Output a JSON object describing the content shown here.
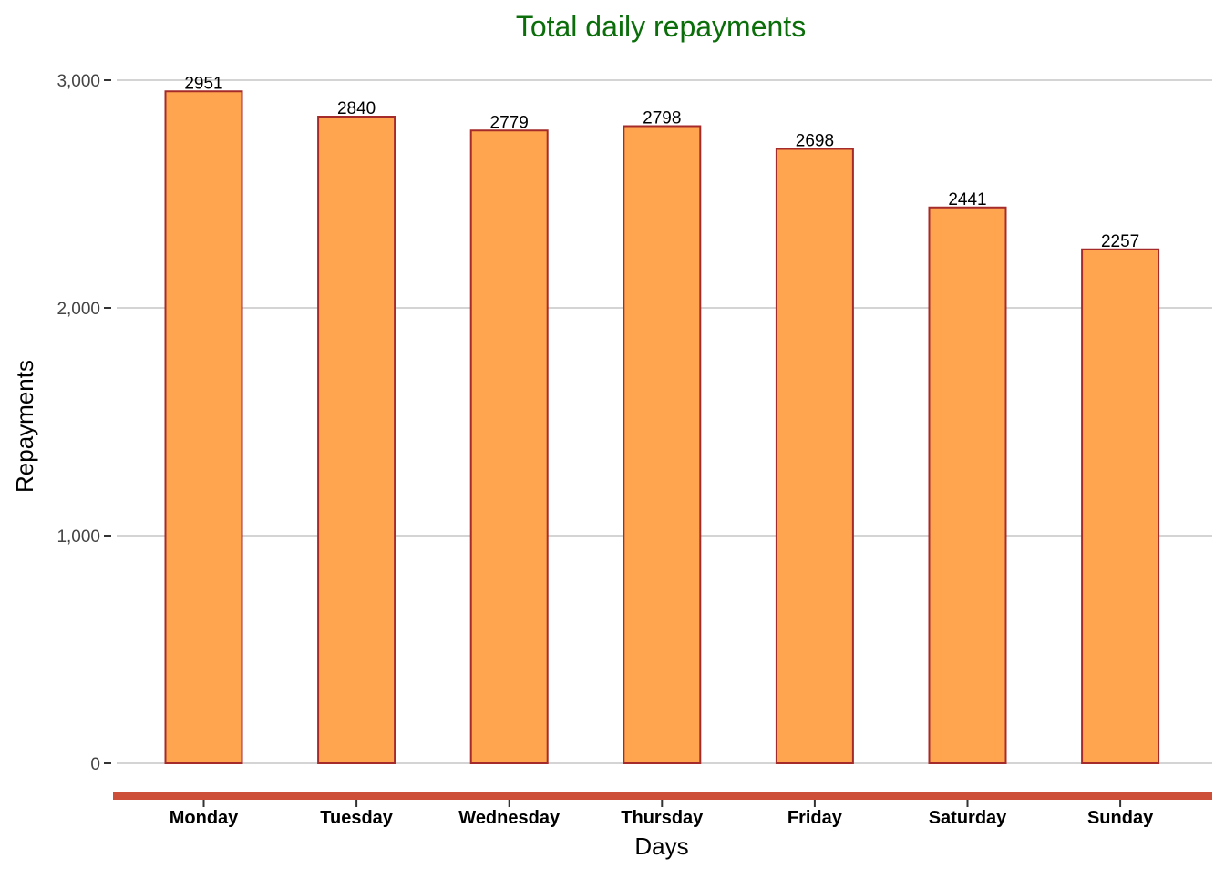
{
  "chart_data": {
    "type": "bar",
    "title": "Total daily repayments",
    "xlabel": "Days",
    "ylabel": "Repayments",
    "categories": [
      "Monday",
      "Tuesday",
      "Wednesday",
      "Thursday",
      "Friday",
      "Saturday",
      "Sunday"
    ],
    "values": [
      2951,
      2840,
      2779,
      2798,
      2698,
      2441,
      2257
    ],
    "value_labels": [
      "2951",
      "2840",
      "2779",
      "2798",
      "2698",
      "2441",
      "2257"
    ],
    "yticks": [
      0,
      1000,
      2000,
      3000
    ],
    "ytick_labels": [
      "0",
      "1,000",
      "2,000",
      "3,000"
    ],
    "ylim": [
      0,
      3000
    ],
    "grid": "horizontal major gridlines",
    "legend": "none",
    "colors": {
      "title": "#0b6e0b",
      "bar_fill": "#ffa54f",
      "bar_stroke": "#a52a2a",
      "x_axis_line": "#cd4f39",
      "grid": "#d4d4d4",
      "tick_text": "#444444",
      "axis_title": "#000000",
      "value_label": "#000000"
    }
  }
}
